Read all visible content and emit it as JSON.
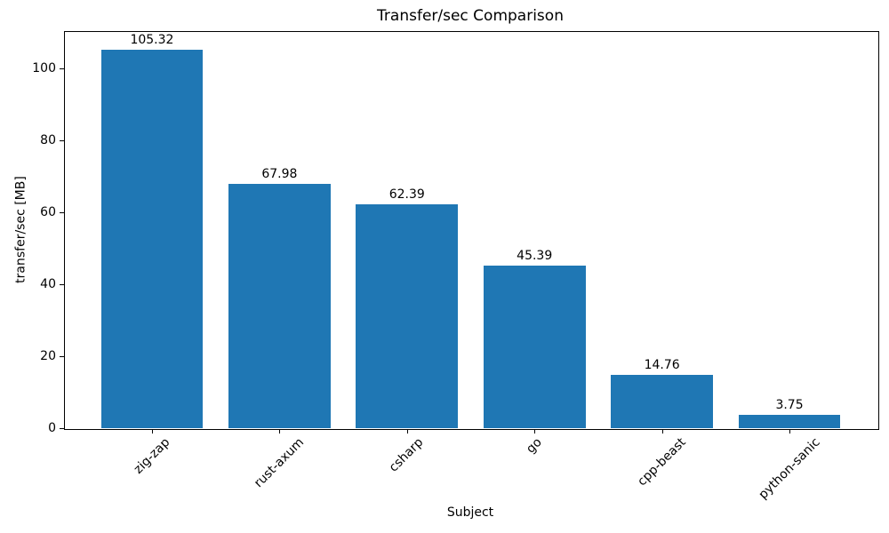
{
  "chart_data": {
    "type": "bar",
    "title": "Transfer/sec Comparison",
    "xlabel": "Subject",
    "ylabel": "transfer/sec [MB]",
    "categories": [
      "zig-zap",
      "rust-axum",
      "csharp",
      "go",
      "cpp-beast",
      "python-sanic"
    ],
    "values": [
      105.32,
      67.98,
      62.39,
      45.39,
      14.76,
      3.75
    ],
    "bar_value_labels": [
      "105.32",
      "67.98",
      "62.39",
      "45.39",
      "14.76",
      "3.75"
    ],
    "y_ticks": [
      0,
      20,
      40,
      60,
      80,
      100
    ],
    "ylim": [
      0,
      110.6
    ],
    "x_tick_rotation_deg": 45,
    "grid": false,
    "legend": "none",
    "bar_color": "#1f77b4",
    "spine_color": "#000000",
    "text_color": "#000000"
  }
}
